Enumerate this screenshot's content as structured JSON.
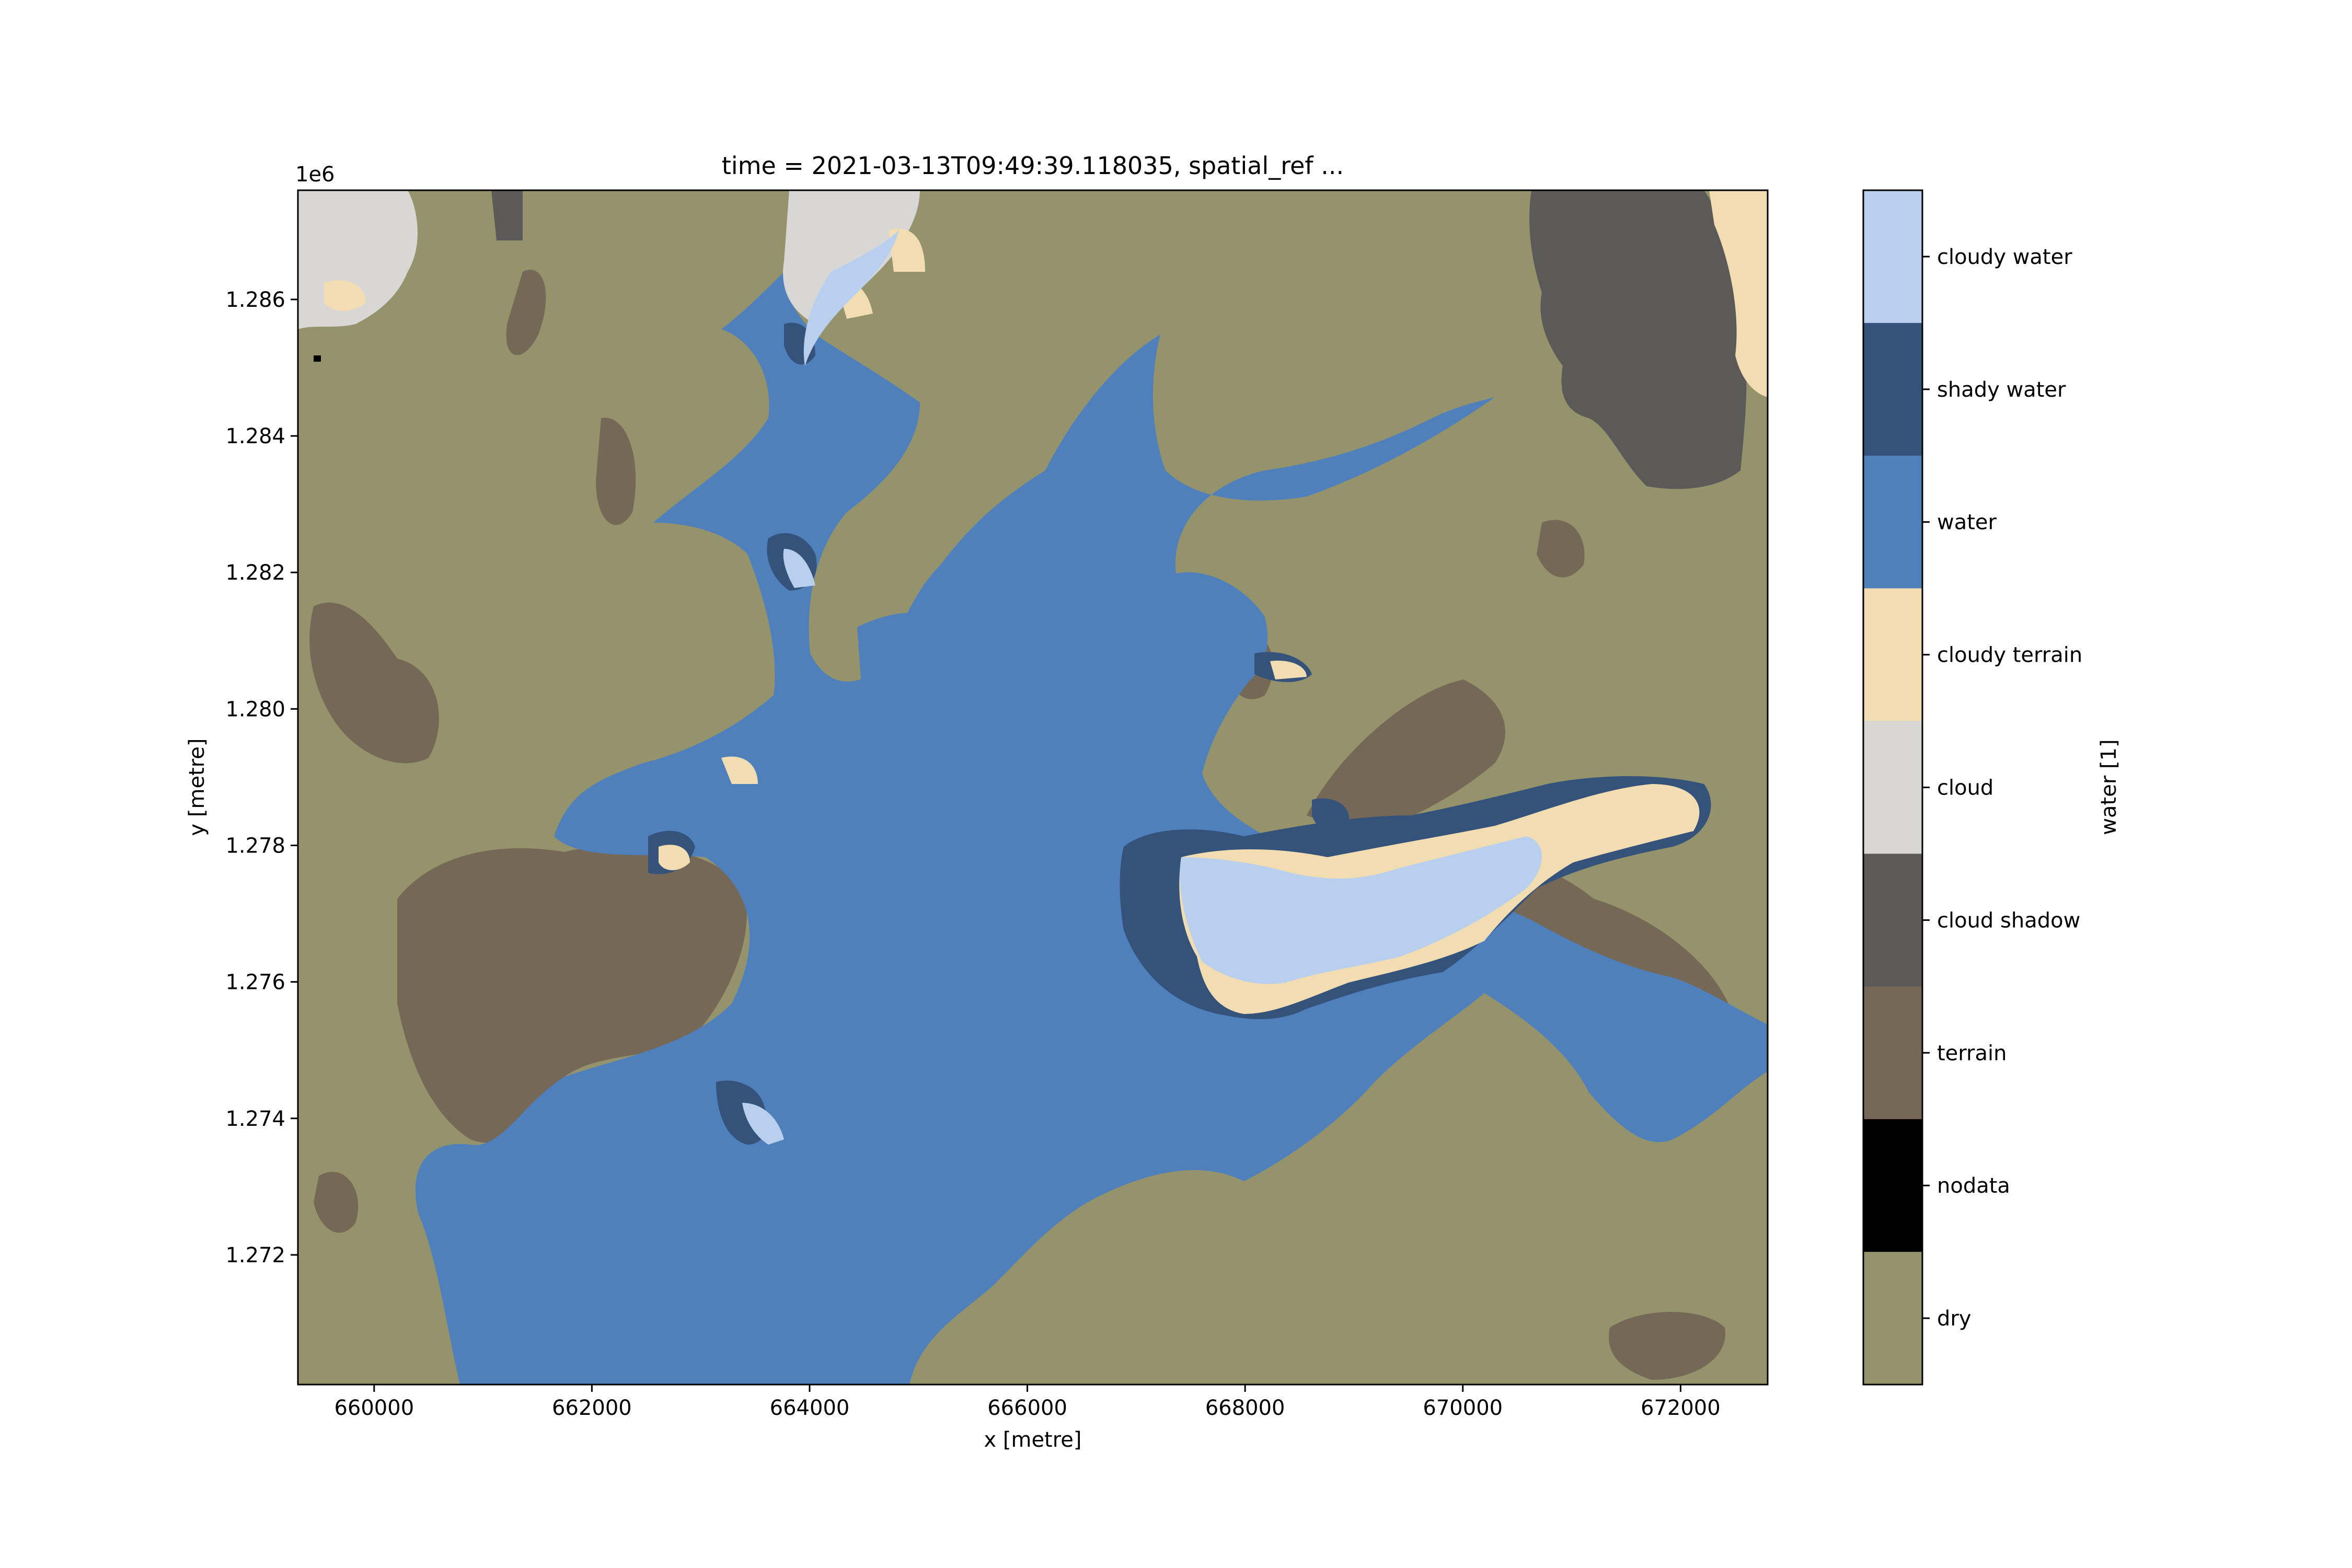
{
  "title": "time = 2021-03-13T09:49:39.118035, spatial_ref ...",
  "x_axis": {
    "label": "x [metre]",
    "ticks": [
      "660000",
      "662000",
      "664000",
      "666000",
      "668000",
      "670000",
      "672000"
    ],
    "range": [
      659300,
      672800
    ]
  },
  "y_axis": {
    "label": "y [metre]",
    "offset_label": "1e6",
    "ticks": [
      "1.272",
      "1.274",
      "1.276",
      "1.278",
      "1.280",
      "1.282",
      "1.284",
      "1.286"
    ],
    "range": [
      1.2701,
      1.2876
    ]
  },
  "colorbar": {
    "label": "water [1]",
    "classes": [
      {
        "name": "cloudy water",
        "color": "#b8d0ee"
      },
      {
        "name": "shady water",
        "color": "#34527a"
      },
      {
        "name": "water",
        "color": "#4f80bb"
      },
      {
        "name": "cloudy terrain",
        "color": "#f2dcb2"
      },
      {
        "name": "cloud",
        "color": "#d8d7d5"
      },
      {
        "name": "cloud shadow",
        "color": "#5b5a58"
      },
      {
        "name": "terrain",
        "color": "#766856"
      },
      {
        "name": "nodata",
        "color": "#000000"
      },
      {
        "name": "dry",
        "color": "#94936c"
      }
    ]
  },
  "map_colors": {
    "dry": "#94936c",
    "water": "#4f80bb",
    "shady_water": "#34527a",
    "cloudy_water": "#b8d0ee",
    "cloudy_terrain": "#f2dcb2",
    "cloud": "#d8d7d5",
    "cloud_shadow": "#5b5a58",
    "terrain": "#766856",
    "nodata": "#000000"
  }
}
